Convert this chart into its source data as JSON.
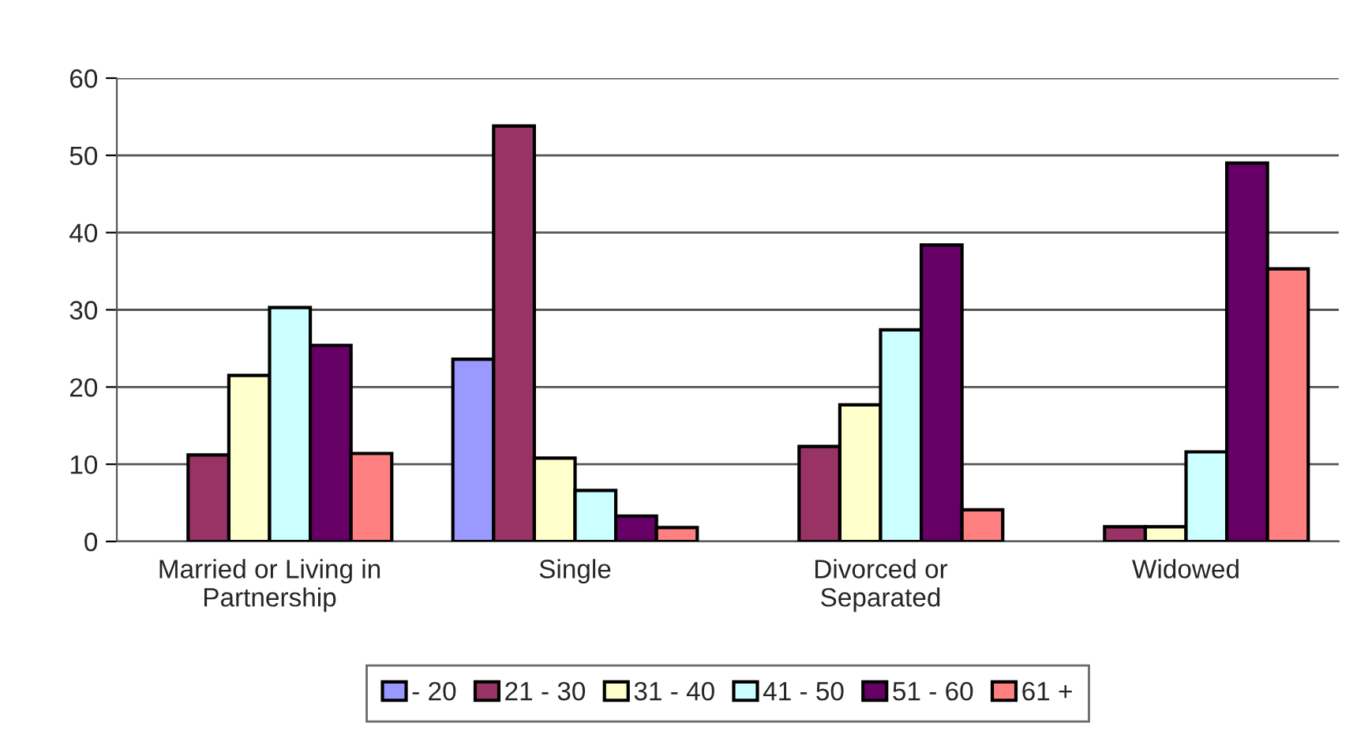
{
  "chart_data": {
    "type": "bar",
    "categories": [
      "Married or Living in\nPartnership",
      "Single",
      "Divorced or\nSeparated",
      "Widowed"
    ],
    "series": [
      {
        "name": "- 20",
        "color": "#9999ff",
        "values": [
          null,
          23.6,
          null,
          null
        ]
      },
      {
        "name": "21 - 30",
        "color": "#993366",
        "values": [
          11.2,
          53.8,
          12.3,
          1.9
        ]
      },
      {
        "name": "31 - 40",
        "color": "#ffffcc",
        "values": [
          21.5,
          10.8,
          17.7,
          1.9
        ]
      },
      {
        "name": "41 - 50",
        "color": "#ccffff",
        "values": [
          30.3,
          6.6,
          27.4,
          11.6
        ]
      },
      {
        "name": "51 - 60",
        "color": "#660066",
        "values": [
          25.4,
          3.3,
          38.4,
          49.0
        ]
      },
      {
        "name": "61 +",
        "color": "#ff8080",
        "values": [
          11.4,
          1.8,
          4.1,
          35.3
        ]
      }
    ],
    "ylim": [
      0,
      60
    ],
    "yticks": [
      0,
      10,
      20,
      30,
      40,
      50,
      60
    ],
    "grid": "y",
    "legend": "bottom"
  }
}
